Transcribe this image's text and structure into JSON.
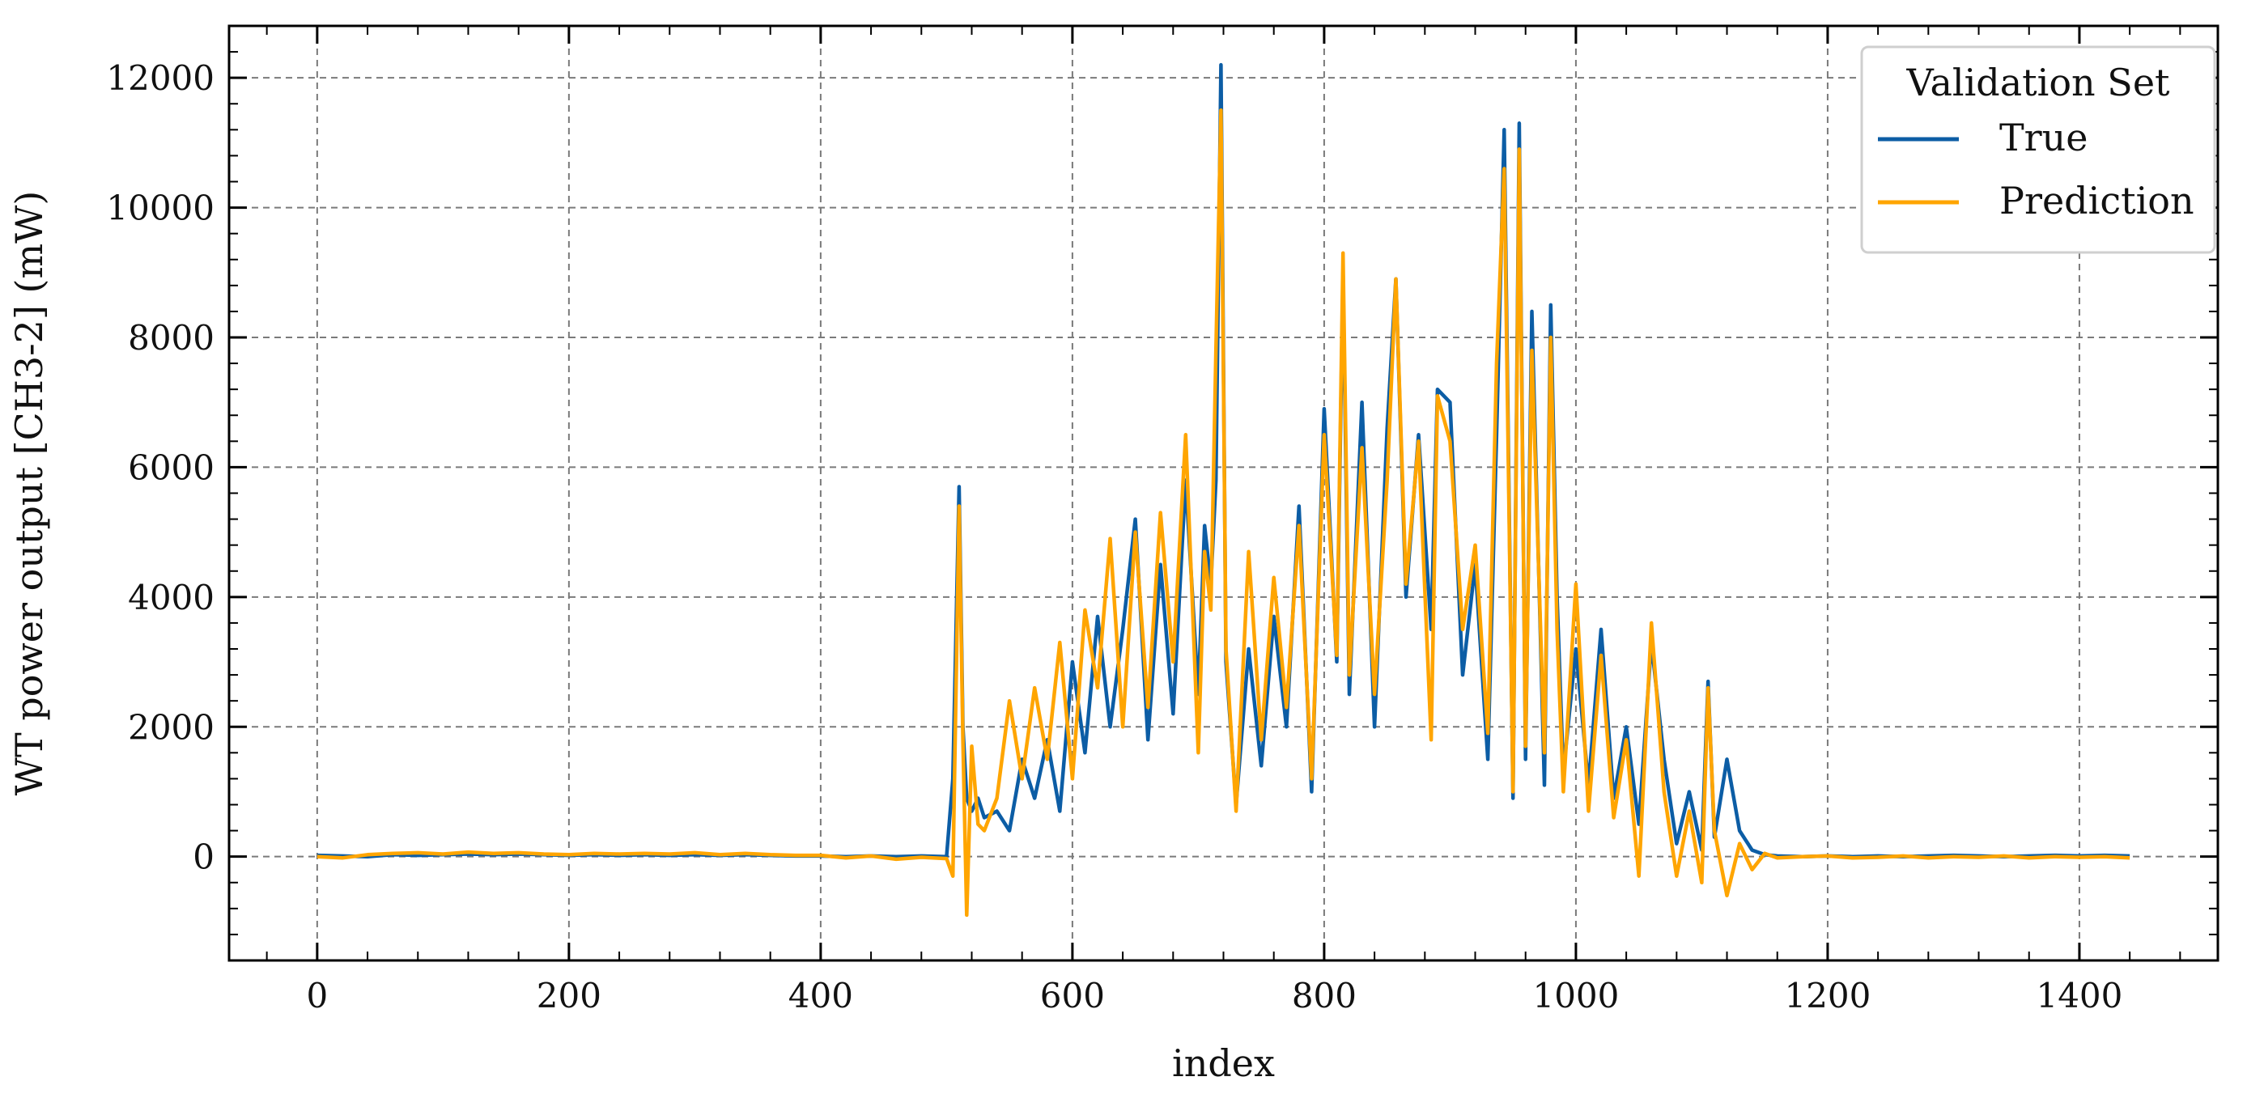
{
  "chart_data": {
    "type": "line",
    "title": "",
    "xlabel": "index",
    "ylabel": "WT power output [CH3-2] (mW)",
    "xlim": [
      -70,
      1510
    ],
    "ylim": [
      -1600,
      12800
    ],
    "xticks": [
      0,
      200,
      400,
      600,
      800,
      1000,
      1200,
      1400
    ],
    "yticks": [
      0,
      2000,
      4000,
      6000,
      8000,
      10000,
      12000
    ],
    "x_tick_labels": [
      "0",
      "200",
      "400",
      "600",
      "800",
      "1000",
      "1200",
      "1400"
    ],
    "y_tick_labels": [
      "0",
      "2000",
      "4000",
      "6000",
      "8000",
      "10000",
      "12000"
    ],
    "grid": true,
    "legend": {
      "title": "Validation Set",
      "placement": "top-right"
    },
    "x": [
      0,
      20,
      40,
      60,
      80,
      100,
      120,
      140,
      160,
      180,
      200,
      220,
      240,
      260,
      280,
      300,
      320,
      340,
      360,
      380,
      400,
      420,
      440,
      460,
      480,
      500,
      505,
      510,
      513,
      516,
      520,
      525,
      530,
      540,
      550,
      560,
      570,
      580,
      590,
      600,
      610,
      620,
      630,
      640,
      650,
      660,
      670,
      680,
      690,
      700,
      705,
      710,
      714,
      718,
      722,
      730,
      740,
      750,
      760,
      770,
      780,
      790,
      800,
      810,
      815,
      820,
      830,
      840,
      850,
      857,
      865,
      875,
      885,
      890,
      900,
      910,
      920,
      930,
      937,
      943,
      950,
      955,
      960,
      965,
      975,
      980,
      985,
      990,
      1000,
      1010,
      1020,
      1030,
      1040,
      1050,
      1060,
      1070,
      1080,
      1090,
      1100,
      1105,
      1110,
      1120,
      1130,
      1140,
      1150,
      1160,
      1180,
      1200,
      1220,
      1240,
      1260,
      1280,
      1300,
      1320,
      1340,
      1360,
      1380,
      1400,
      1420,
      1440
    ],
    "series": [
      {
        "name": "True",
        "color": "#0C5DA5",
        "values": [
          20,
          10,
          0,
          30,
          20,
          30,
          40,
          30,
          40,
          30,
          20,
          30,
          20,
          30,
          20,
          30,
          20,
          30,
          20,
          10,
          10,
          0,
          10,
          0,
          10,
          0,
          1200,
          5700,
          2000,
          900,
          700,
          900,
          600,
          700,
          400,
          1500,
          900,
          1800,
          700,
          3000,
          1600,
          3700,
          2000,
          3500,
          5200,
          1800,
          4500,
          2200,
          5800,
          2500,
          5100,
          4200,
          5800,
          12200,
          3000,
          800,
          3200,
          1400,
          3700,
          2000,
          5400,
          1000,
          6900,
          3000,
          9000,
          2500,
          7000,
          2000,
          6600,
          8900,
          4000,
          6500,
          3500,
          7200,
          7000,
          2800,
          4500,
          1500,
          6500,
          11200,
          900,
          11300,
          1500,
          8400,
          1100,
          8500,
          4000,
          1300,
          3200,
          1100,
          3500,
          900,
          2000,
          500,
          3300,
          1500,
          200,
          1000,
          100,
          2700,
          300,
          1500,
          400,
          100,
          30,
          10,
          0,
          10,
          0,
          10,
          0,
          10,
          20,
          10,
          0,
          10,
          20,
          10,
          20,
          10
        ]
      },
      {
        "name": "Prediction",
        "color": "#FFA500",
        "values": [
          0,
          -20,
          30,
          50,
          60,
          40,
          70,
          50,
          60,
          40,
          30,
          50,
          40,
          50,
          40,
          60,
          30,
          50,
          30,
          20,
          20,
          -20,
          10,
          -40,
          -10,
          -30,
          -300,
          5400,
          1800,
          -900,
          1700,
          500,
          400,
          900,
          2400,
          1200,
          2600,
          1500,
          3300,
          1200,
          3800,
          2600,
          4900,
          2000,
          5000,
          2300,
          5300,
          3000,
          6500,
          1600,
          4700,
          3800,
          7800,
          11500,
          3200,
          700,
          4700,
          1800,
          4300,
          2300,
          5100,
          1200,
          6500,
          3100,
          9300,
          2800,
          6300,
          2500,
          5800,
          8900,
          4200,
          6400,
          1800,
          7100,
          6400,
          3500,
          4800,
          1900,
          7600,
          10600,
          1000,
          10900,
          1700,
          7800,
          1600,
          8000,
          3500,
          1000,
          4200,
          700,
          3100,
          600,
          1800,
          -300,
          3600,
          1000,
          -300,
          700,
          -400,
          2600,
          400,
          -600,
          200,
          -200,
          50,
          -20,
          0,
          10,
          -20,
          -10,
          10,
          -20,
          0,
          -10,
          10,
          -20,
          0,
          -10,
          0,
          -20
        ]
      }
    ]
  }
}
